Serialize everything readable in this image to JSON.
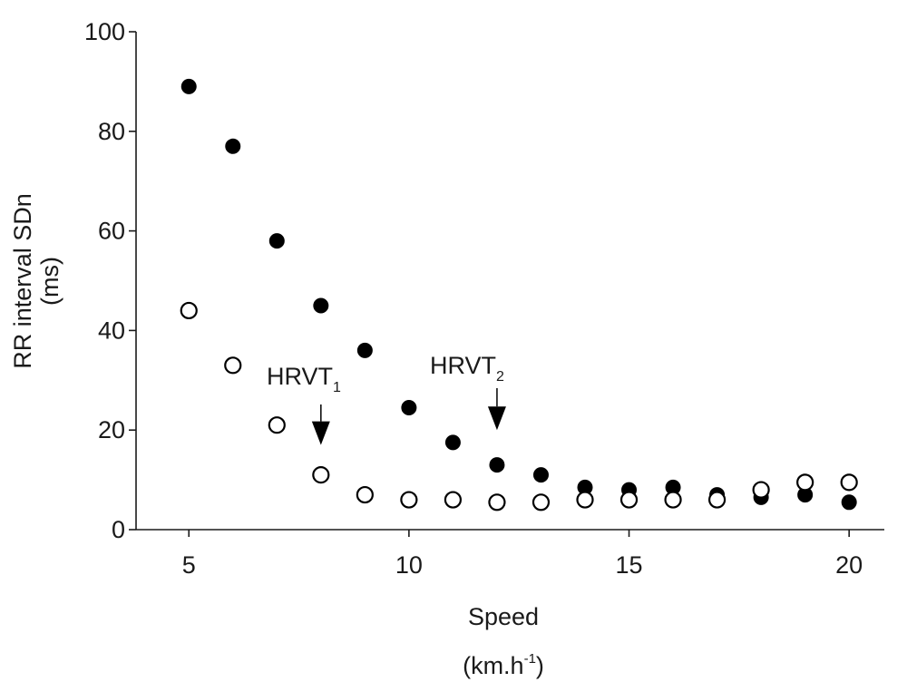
{
  "chart_data": {
    "type": "scatter",
    "ylabel_line1": "RR interval SDn",
    "ylabel_line2": "(ms)",
    "xlabel_line1": "Speed",
    "xlabel_unit_main": "(km.h",
    "xlabel_unit_sup": "-1",
    "xlabel_unit_close": ")",
    "xlim": [
      3.8,
      20.8
    ],
    "ylim": [
      0,
      100
    ],
    "x_ticks": [
      5,
      10,
      15,
      20
    ],
    "x_tick_labels": [
      "5",
      "10",
      "15",
      "20"
    ],
    "y_ticks": [
      0,
      20,
      40,
      60,
      80,
      100
    ],
    "y_tick_labels": [
      "0",
      "20",
      "40",
      "60",
      "80",
      "100"
    ],
    "grid": false,
    "series": [
      {
        "marker": "filled-circle",
        "color": "#000000",
        "x": [
          5,
          6,
          7,
          8,
          9,
          10,
          11,
          12,
          13,
          14,
          15,
          16,
          17,
          18,
          19,
          20
        ],
        "y": [
          89,
          77,
          58,
          45,
          36,
          24.5,
          17.5,
          13,
          11,
          8.5,
          8,
          8.5,
          7,
          6.5,
          7,
          5.5
        ]
      },
      {
        "marker": "open-circle",
        "color": "#000000",
        "x": [
          5,
          6,
          7,
          8,
          9,
          10,
          11,
          12,
          13,
          14,
          15,
          16,
          17,
          18,
          19,
          20
        ],
        "y": [
          44,
          33,
          21,
          11,
          7,
          6,
          6,
          5.5,
          5.5,
          6,
          6,
          6,
          6,
          8,
          9.5,
          9.5
        ]
      }
    ],
    "annotations": [
      {
        "label_main": "HRVT",
        "label_sub": "1",
        "x": 8,
        "arrow_tip_y": 17
      },
      {
        "label_main": "HRVT",
        "label_sub": "2",
        "x": 12,
        "arrow_tip_y": 20
      }
    ]
  }
}
